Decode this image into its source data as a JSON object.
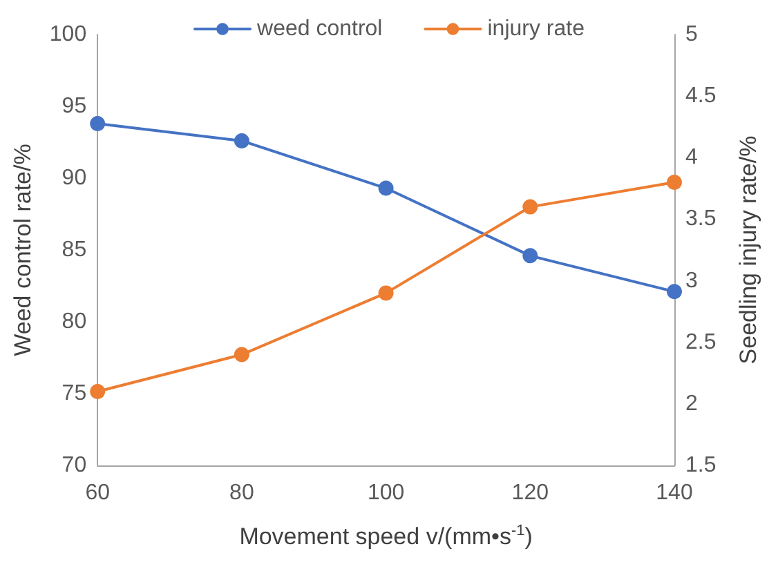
{
  "chart_data": {
    "type": "line",
    "xlabel": "Movement speed v/(mm•s$^{-1}$)",
    "ylabel": "Weed control rate/%",
    "y2label": "Seedling injury rate/%",
    "categories": [
      "60",
      "80",
      "100",
      "120",
      "140"
    ],
    "series": [
      {
        "name": "weed control",
        "color": "#4472c4",
        "values": [
          93.8,
          92.6,
          89.3,
          84.6,
          82.1
        ]
      },
      {
        "name": "injury rate",
        "color": "#ed7d31",
        "axis": "y2",
        "values": [
          2.1,
          2.4,
          2.9,
          3.6,
          3.8
        ]
      }
    ],
    "ylim": [
      70,
      100
    ],
    "yticks": [
      70,
      75,
      80,
      85,
      90,
      95,
      100
    ],
    "y2lim": [
      1.5,
      5
    ],
    "y2ticks": [
      1.5,
      2,
      2.5,
      3,
      3.5,
      4,
      4.5,
      5
    ],
    "grid": false,
    "legend": "top",
    "marker": "circle",
    "line_style": "solid"
  }
}
